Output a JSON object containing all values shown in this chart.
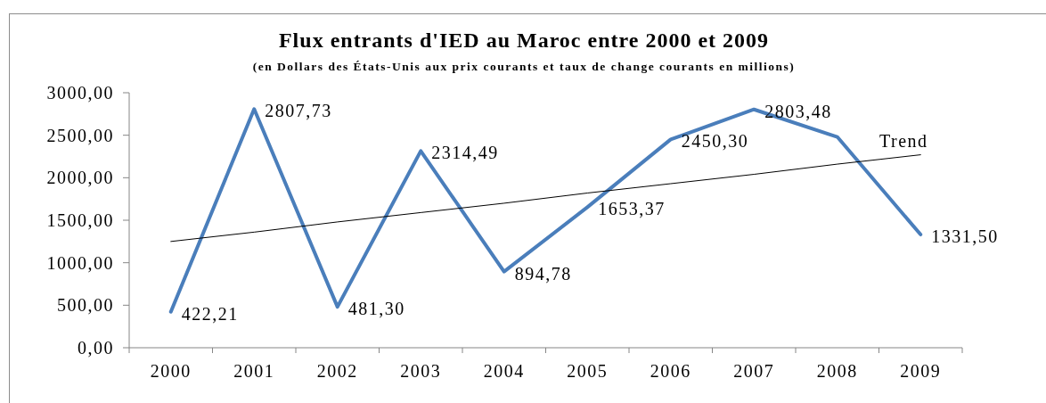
{
  "chart_data": {
    "type": "line",
    "title": "Flux entrants d'IED au Maroc entre 2000 et 2009",
    "subtitle": "(en Dollars des États-Unis aux prix courants et taux de change courants en millions)",
    "categories": [
      "2000",
      "2001",
      "2002",
      "2003",
      "2004",
      "2005",
      "2006",
      "2007",
      "2008",
      "2009"
    ],
    "series": [
      {
        "color": "#4a7ebb",
        "values": [
          422.21,
          2807.73,
          481.3,
          2314.49,
          894.78,
          1653.37,
          2450.3,
          2803.48,
          2480,
          1331.5
        ],
        "value_labels": [
          "422,21",
          "2807,73",
          "481,30",
          "2314,49",
          "894,78",
          "1653,37",
          "2450,30",
          "2803,48",
          null,
          "1331,50"
        ]
      },
      {
        "name": "Trend",
        "type": "line",
        "color": "#000000",
        "values": [
          1250,
          1360,
          1480,
          1590,
          1700,
          1820,
          1930,
          2040,
          2160,
          2270
        ]
      }
    ],
    "ylim": [
      0,
      3000
    ],
    "yticks": [
      {
        "value": 0,
        "label": "0,00"
      },
      {
        "value": 500,
        "label": "500,00"
      },
      {
        "value": 1000,
        "label": "1000,00"
      },
      {
        "value": 1500,
        "label": "1500,00"
      },
      {
        "value": 2000,
        "label": "2000,00"
      },
      {
        "value": 2500,
        "label": "2500,00"
      },
      {
        "value": 3000,
        "label": "3000,00"
      }
    ],
    "grid": false,
    "legend": false,
    "marker": "none",
    "line_style": "solid"
  }
}
